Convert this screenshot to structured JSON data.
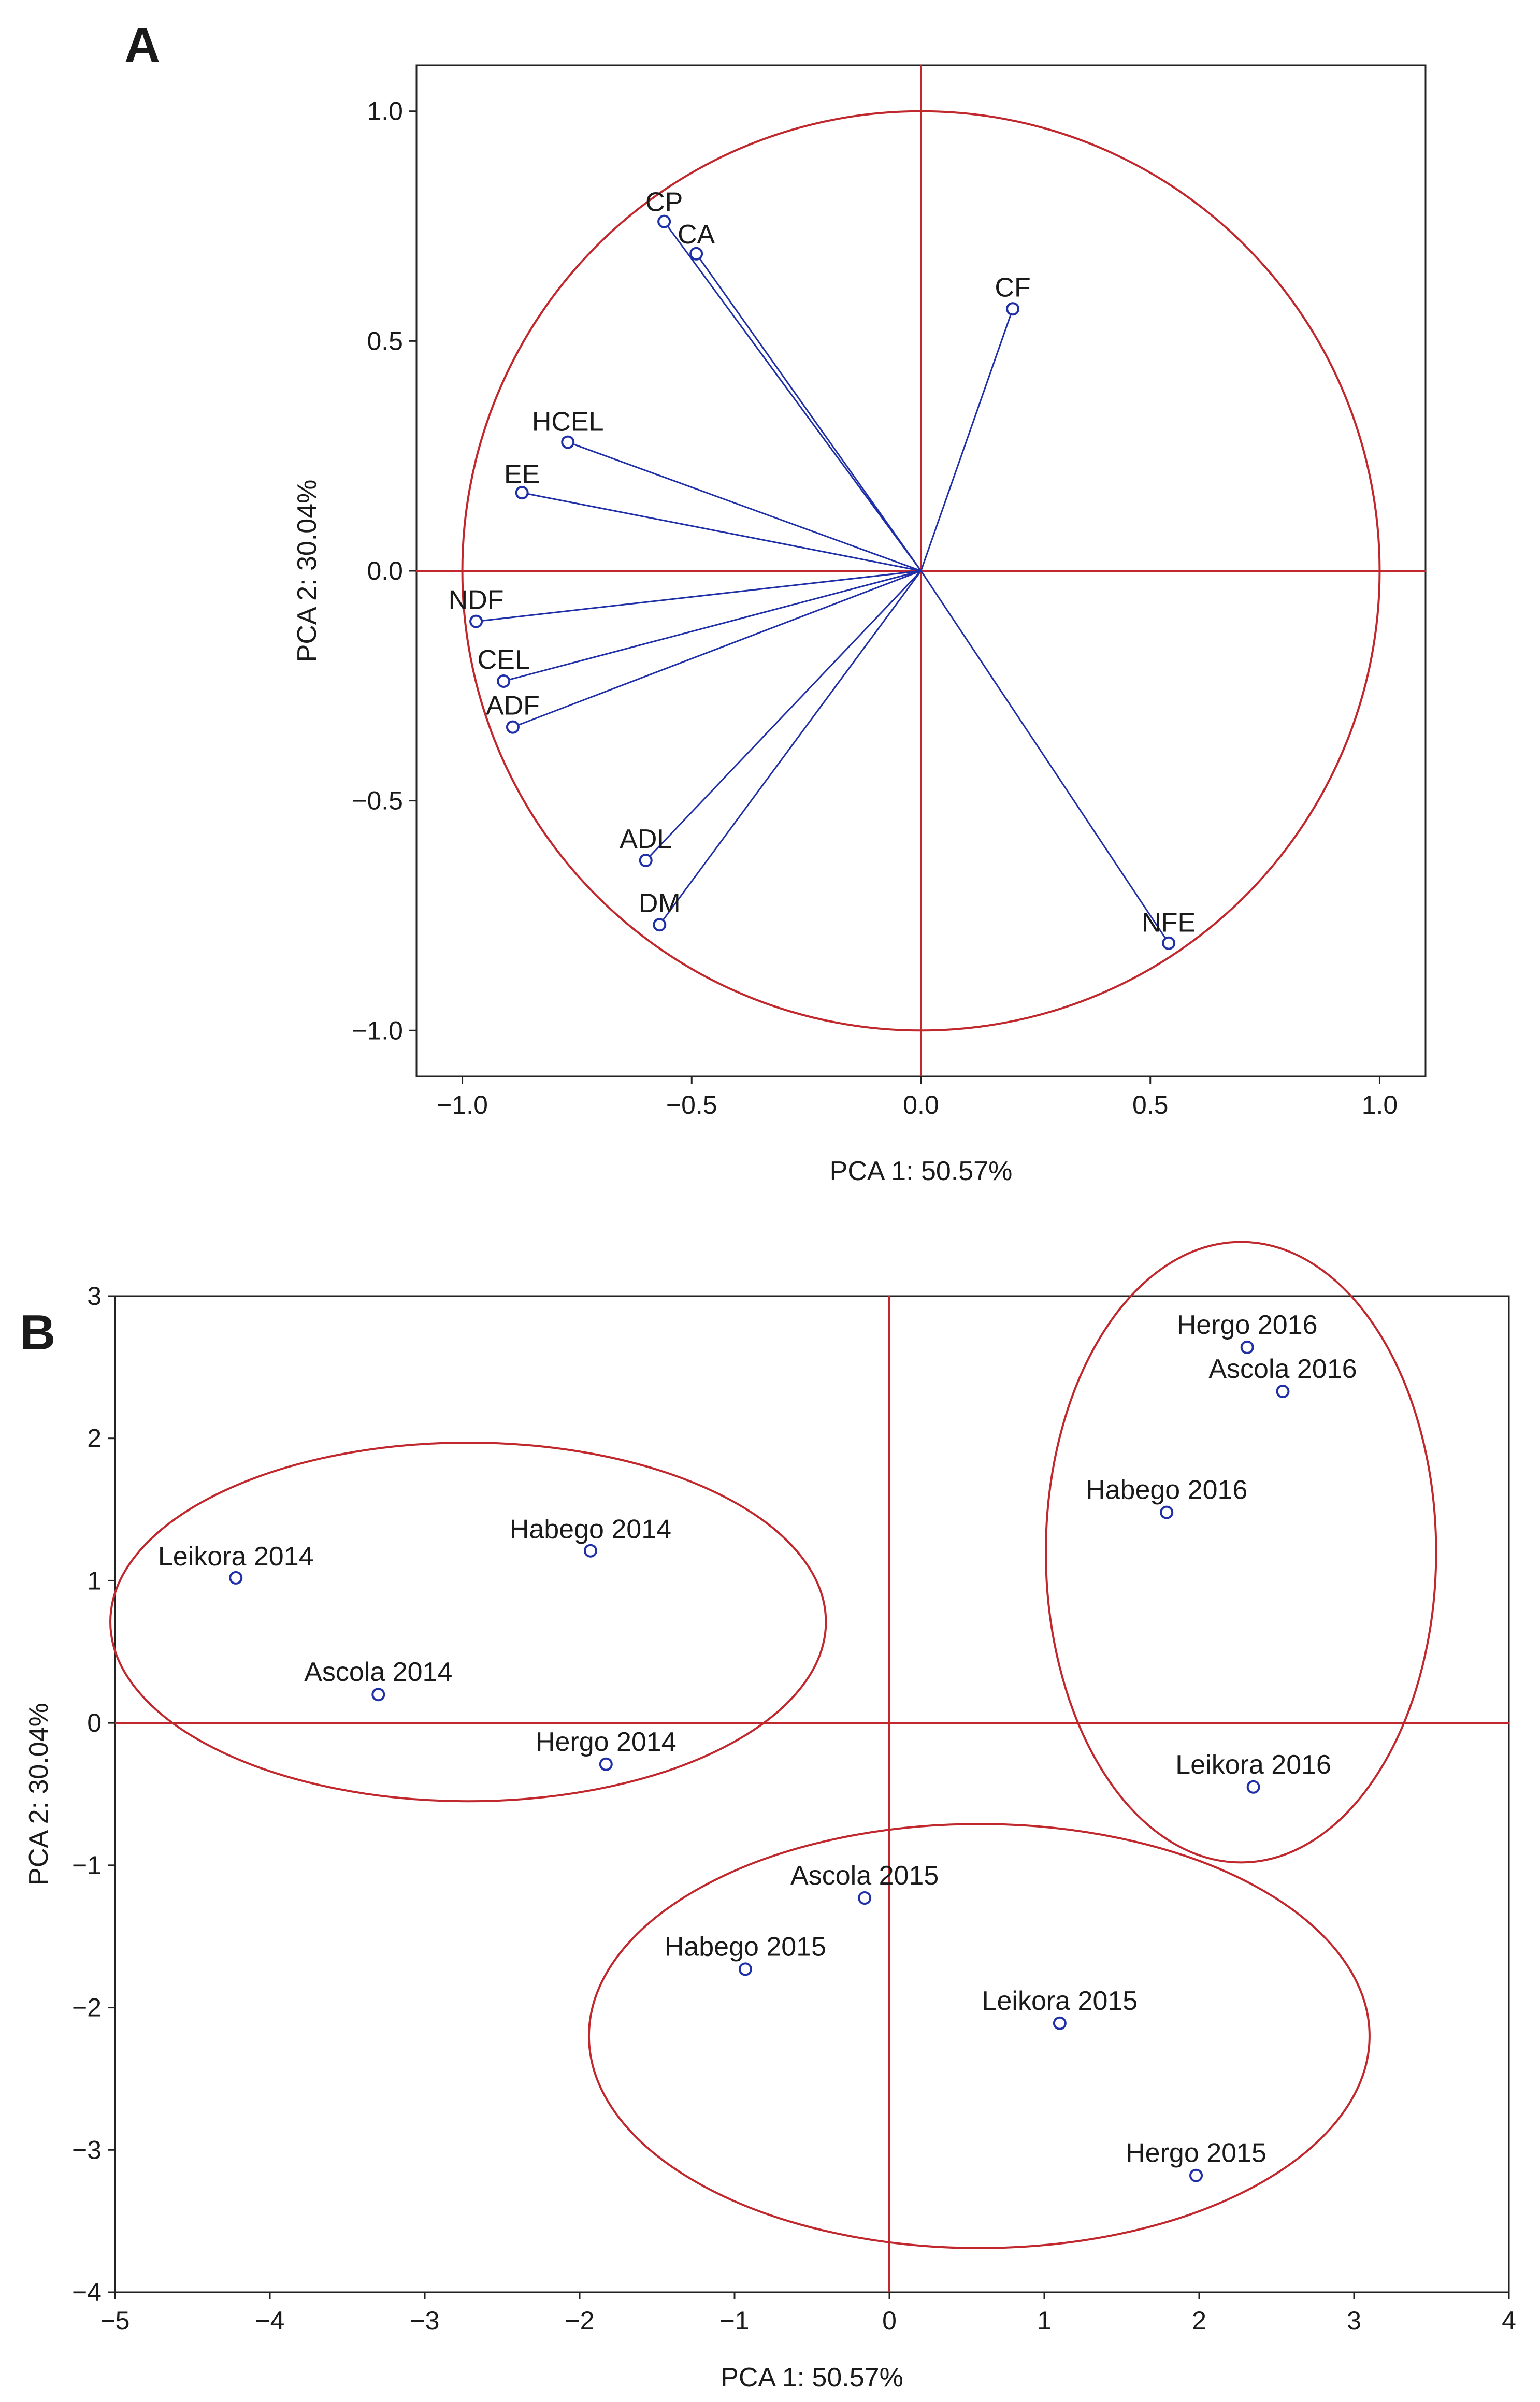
{
  "chart_data": [
    {
      "panel": "A",
      "type": "scatter",
      "subtype": "pca-loadings-correlation-circle",
      "xlabel": "PCA 1: 50.57%",
      "ylabel": "PCA 2: 30.04%",
      "xlim": [
        -1.1,
        1.1
      ],
      "ylim": [
        -1.1,
        1.1
      ],
      "xticks": [
        "−1.0",
        "−0.5",
        "0.0",
        "0.5",
        "1.0"
      ],
      "xtick_values": [
        -1.0,
        -0.5,
        0.0,
        0.5,
        1.0
      ],
      "yticks": [
        "−1.0",
        "−0.5",
        "0.0",
        "0.5",
        "1.0"
      ],
      "ytick_values": [
        -1.0,
        -0.5,
        0.0,
        0.5,
        1.0
      ],
      "circle": {
        "cx": 0,
        "cy": 0,
        "r": 1.0
      },
      "colors": {
        "vector": "#1f2fa8",
        "guide": "#c0282d",
        "point": "#1f2fa8"
      },
      "points": [
        {
          "label": "CP",
          "x": -0.56,
          "y": 0.76
        },
        {
          "label": "CA",
          "x": -0.49,
          "y": 0.69
        },
        {
          "label": "CF",
          "x": 0.2,
          "y": 0.57
        },
        {
          "label": "HCEL",
          "x": -0.77,
          "y": 0.28
        },
        {
          "label": "EE",
          "x": -0.87,
          "y": 0.17
        },
        {
          "label": "NDF",
          "x": -0.97,
          "y": -0.11
        },
        {
          "label": "CEL",
          "x": -0.91,
          "y": -0.24
        },
        {
          "label": "ADF",
          "x": -0.89,
          "y": -0.34
        },
        {
          "label": "ADL",
          "x": -0.6,
          "y": -0.63
        },
        {
          "label": "DM",
          "x": -0.57,
          "y": -0.77
        },
        {
          "label": "NFE",
          "x": 0.54,
          "y": -0.81
        }
      ]
    },
    {
      "panel": "B",
      "type": "scatter",
      "subtype": "pca-scores",
      "xlabel": "PCA 1: 50.57%",
      "ylabel": "PCA 2: 30.04%",
      "xlim": [
        -5,
        4
      ],
      "ylim": [
        -4,
        3
      ],
      "xticks": [
        "−5",
        "−4",
        "−3",
        "−2",
        "−1",
        "0",
        "1",
        "2",
        "3",
        "4"
      ],
      "xtick_values": [
        -5,
        -4,
        -3,
        -2,
        -1,
        0,
        1,
        2,
        3,
        4
      ],
      "yticks": [
        "−4",
        "−3",
        "−2",
        "−1",
        "0",
        "1",
        "2",
        "3"
      ],
      "ytick_values": [
        -4,
        -3,
        -2,
        -1,
        0,
        1,
        2,
        3
      ],
      "colors": {
        "guide": "#c0282d",
        "point": "#1f2fa8"
      },
      "groups": [
        {
          "name": "2014",
          "ellipse": {
            "cx": -2.72,
            "cy": 0.71,
            "rx": 2.31,
            "ry": 1.26
          }
        },
        {
          "name": "2015",
          "ellipse": {
            "cx": 0.58,
            "cy": -2.2,
            "rx": 2.52,
            "ry": 1.49
          }
        },
        {
          "name": "2016",
          "ellipse": {
            "cx": 2.27,
            "cy": 1.2,
            "rx": 1.26,
            "ry": 2.18
          }
        }
      ],
      "points": [
        {
          "label": "Leikora 2014",
          "x": -4.22,
          "y": 1.02
        },
        {
          "label": "Habego 2014",
          "x": -1.93,
          "y": 1.21
        },
        {
          "label": "Ascola 2014",
          "x": -3.3,
          "y": 0.2
        },
        {
          "label": "Hergo 2014",
          "x": -1.83,
          "y": -0.29
        },
        {
          "label": "Ascola 2015",
          "x": -0.16,
          "y": -1.23
        },
        {
          "label": "Habego 2015",
          "x": -0.93,
          "y": -1.73
        },
        {
          "label": "Leikora 2015",
          "x": 1.1,
          "y": -2.11
        },
        {
          "label": "Hergo 2015",
          "x": 1.98,
          "y": -3.18
        },
        {
          "label": "Hergo 2016",
          "x": 2.31,
          "y": 2.64
        },
        {
          "label": "Ascola 2016",
          "x": 2.54,
          "y": 2.33
        },
        {
          "label": "Habego 2016",
          "x": 1.79,
          "y": 1.48
        },
        {
          "label": "Leikora 2016",
          "x": 2.35,
          "y": -0.45
        }
      ]
    }
  ],
  "panels": {
    "a_letter": "A",
    "b_letter": "B"
  }
}
